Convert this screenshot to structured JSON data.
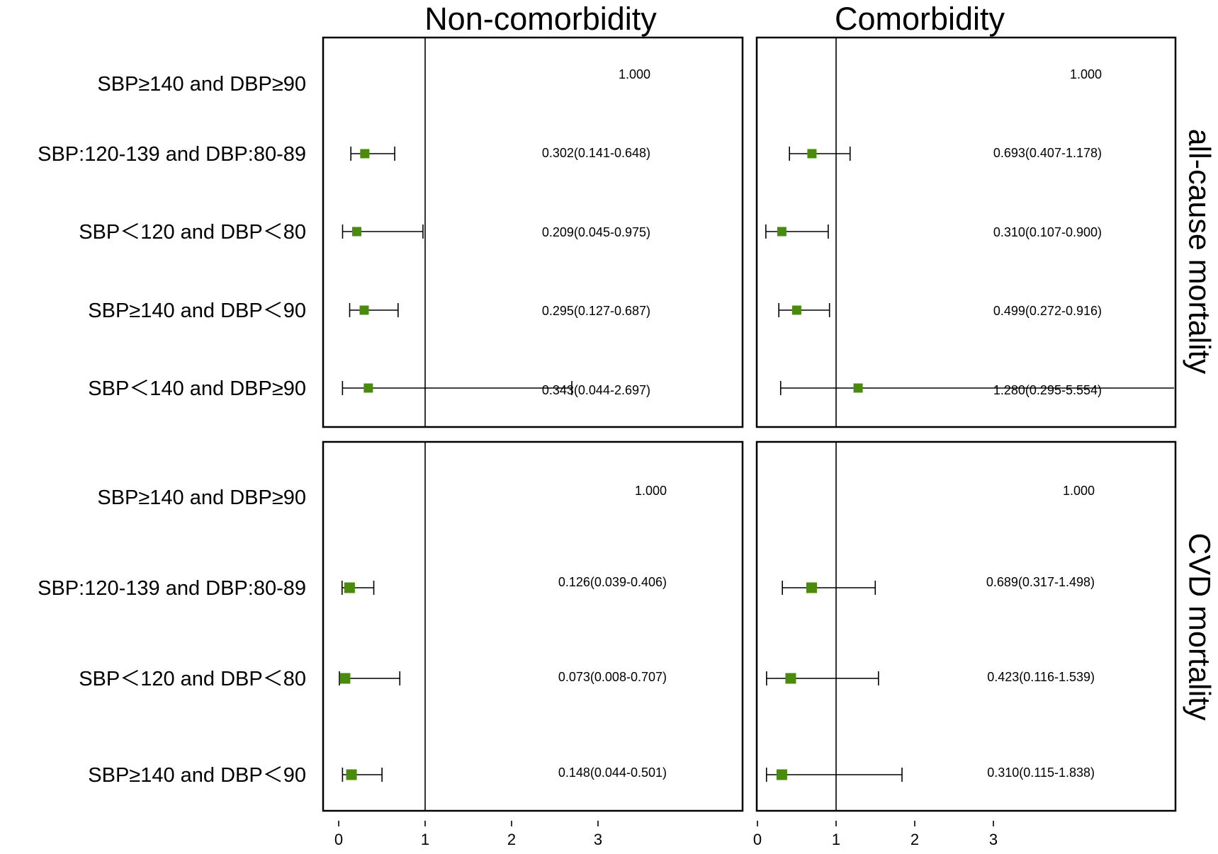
{
  "chart_data": {
    "type": "forest",
    "columns": [
      "Non-comorbidity",
      "Comorbidity"
    ],
    "rows": [
      "all-cause mortality",
      "CVD mortality"
    ],
    "reference_value": 1,
    "x_ticks": [
      "0",
      "1",
      "2",
      "3"
    ],
    "marker_color": "#4a8a0c",
    "panels": [
      {
        "col": 0,
        "row": 0,
        "items": [
          {
            "label": "SBP≥140 and DBP≥90",
            "text": "1.000",
            "est": null,
            "lo": null,
            "hi": null
          },
          {
            "label": "SBP:120-139 and DBP:80-89",
            "text": "0.302(0.141-0.648)",
            "est": 0.302,
            "lo": 0.141,
            "hi": 0.648
          },
          {
            "label": "SBP＜120 and DBP＜80",
            "text": "0.209(0.045-0.975)",
            "est": 0.209,
            "lo": 0.045,
            "hi": 0.975
          },
          {
            "label": "SBP≥140 and DBP＜90",
            "text": "0.295(0.127-0.687)",
            "est": 0.295,
            "lo": 0.127,
            "hi": 0.687
          },
          {
            "label": "SBP＜140 and DBP≥90",
            "text": "0.343(0.044-2.697)",
            "est": 0.343,
            "lo": 0.044,
            "hi": 2.697
          }
        ]
      },
      {
        "col": 1,
        "row": 0,
        "items": [
          {
            "label": "SBP≥140 and DBP≥90",
            "text": "1.000",
            "est": null,
            "lo": null,
            "hi": null
          },
          {
            "label": "SBP:120-139 and DBP:80-89",
            "text": "0.693(0.407-1.178)",
            "est": 0.693,
            "lo": 0.407,
            "hi": 1.178
          },
          {
            "label": "SBP＜120 and DBP＜80",
            "text": "0.310(0.107-0.900)",
            "est": 0.31,
            "lo": 0.107,
            "hi": 0.9
          },
          {
            "label": "SBP≥140 and DBP＜90",
            "text": "0.499(0.272-0.916)",
            "est": 0.499,
            "lo": 0.272,
            "hi": 0.916
          },
          {
            "label": "SBP＜140 and DBP≥90",
            "text": "1.280(0.295-5.554)",
            "est": 1.28,
            "lo": 0.295,
            "hi": 5.554
          }
        ]
      },
      {
        "col": 0,
        "row": 1,
        "items": [
          {
            "label": "SBP≥140 and DBP≥90",
            "text": "1.000",
            "est": null,
            "lo": null,
            "hi": null
          },
          {
            "label": "SBP:120-139 and DBP:80-89",
            "text": "0.126(0.039-0.406)",
            "est": 0.126,
            "lo": 0.039,
            "hi": 0.406
          },
          {
            "label": "SBP＜120 and DBP＜80",
            "text": "0.073(0.008-0.707)",
            "est": 0.073,
            "lo": 0.008,
            "hi": 0.707
          },
          {
            "label": "SBP≥140 and DBP＜90",
            "text": "0.148(0.044-0.501)",
            "est": 0.148,
            "lo": 0.044,
            "hi": 0.501
          }
        ]
      },
      {
        "col": 1,
        "row": 1,
        "items": [
          {
            "label": "SBP≥140 and DBP≥90",
            "text": "1.000",
            "est": null,
            "lo": null,
            "hi": null
          },
          {
            "label": "SBP:120-139 and DBP:80-89",
            "text": "0.689(0.317-1.498)",
            "est": 0.689,
            "lo": 0.317,
            "hi": 1.498
          },
          {
            "label": "SBP＜120 and DBP＜80",
            "text": "0.423(0.116-1.539)",
            "est": 0.423,
            "lo": 0.116,
            "hi": 1.539
          },
          {
            "label": "SBP≥140 and DBP＜90",
            "text": "0.310(0.115-1.838)",
            "est": 0.31,
            "lo": 0.115,
            "hi": 1.838
          }
        ]
      }
    ]
  }
}
